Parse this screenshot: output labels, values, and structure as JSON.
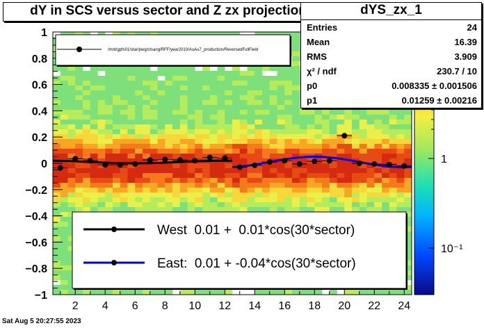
{
  "title": "dY in SCS versus sector and Z zx projection",
  "stats": {
    "name": "dYS_zx_1",
    "rows": [
      {
        "key": "Entries",
        "value": "24"
      },
      {
        "key": "Mean",
        "value": "16.39"
      },
      {
        "key": "RMS",
        "value": "3.909"
      },
      {
        "key": "χ² / ndf",
        "value": "230.7 / 10"
      },
      {
        "key": "p0",
        "value": "0.008335  ± 0.001506"
      },
      {
        "key": "p1",
        "value": "0.01259  ± 0.00216"
      }
    ]
  },
  "datetime": "Sat Aug  5 20:27:55 2023",
  "chart_data": {
    "type": "scatter",
    "xlim": [
      0.5,
      24.5
    ],
    "ylim": [
      -1,
      1
    ],
    "x_ticks": [
      "2",
      "4",
      "6",
      "8",
      "10",
      "12",
      "14",
      "16",
      "18",
      "20",
      "22",
      "24"
    ],
    "y_ticks": [
      "−1",
      "−0.8",
      "−0.6",
      "−0.4",
      "−0.2",
      "0",
      "0.2",
      "0.4",
      "0.6",
      "0.8",
      "1"
    ],
    "z_ticks": [
      "1",
      "10⁻¹"
    ],
    "points": [
      {
        "x": 1,
        "y": -0.035
      },
      {
        "x": 2,
        "y": 0.035
      },
      {
        "x": 3,
        "y": 0.02
      },
      {
        "x": 4,
        "y": -0.012
      },
      {
        "x": 5,
        "y": -0.012
      },
      {
        "x": 6,
        "y": -0.005
      },
      {
        "x": 7,
        "y": 0.025
      },
      {
        "x": 8,
        "y": 0.03
      },
      {
        "x": 9,
        "y": 0.025
      },
      {
        "x": 10,
        "y": 0.02
      },
      {
        "x": 11,
        "y": 0.045
      },
      {
        "x": 12,
        "y": 0.04
      },
      {
        "x": 13,
        "y": -0.03
      },
      {
        "x": 14,
        "y": -0.015
      },
      {
        "x": 15,
        "y": 0.01
      },
      {
        "x": 16,
        "y": 0.02
      },
      {
        "x": 17,
        "y": -0.005
      },
      {
        "x": 18,
        "y": 0.015
      },
      {
        "x": 19,
        "y": 0.02
      },
      {
        "x": 20,
        "y": 0.21
      },
      {
        "x": 21,
        "y": 0.0
      },
      {
        "x": 22,
        "y": -0.005
      },
      {
        "x": 23,
        "y": -0.01
      },
      {
        "x": 24,
        "y": -0.02
      }
    ],
    "fits": [
      {
        "name": "West  0.01 +  0.01*cos(30*sector)",
        "color": "#000000",
        "x_range": [
          0.5,
          12.5
        ],
        "p0": 0.01,
        "p1": 0.01
      },
      {
        "name": "East:  0.01 + -0.04*cos(30*sector)",
        "color": "#0000ee",
        "x_range": [
          12.5,
          24.5
        ],
        "p0": 0.01,
        "p1": -0.04
      }
    ],
    "legend_top": {
      "label": "/mnt/gpfs01/star/pwg/ctsang/RFF/year2010/AuAu7_production/ReversedFullField"
    }
  }
}
